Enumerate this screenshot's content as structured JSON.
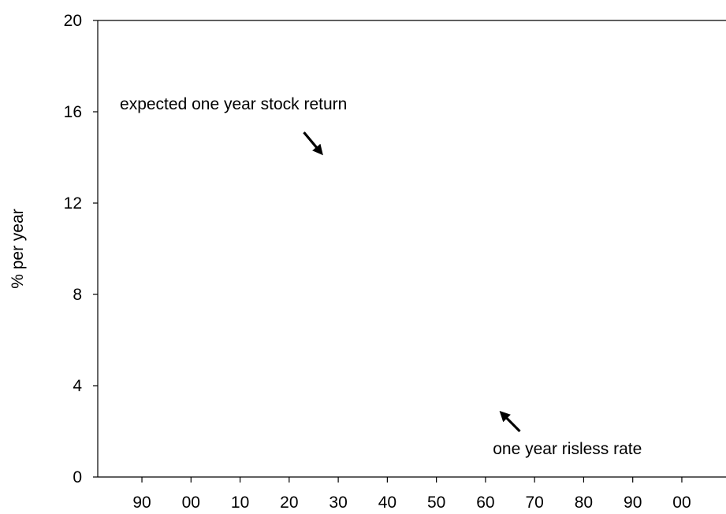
{
  "chart_data": {
    "type": "line",
    "title": "",
    "xlabel": "",
    "ylabel": "% per year",
    "ylim": [
      0,
      20
    ],
    "xlim": [
      1881,
      2009
    ],
    "x_ticks": [
      {
        "value": 1890,
        "label": "90"
      },
      {
        "value": 1900,
        "label": "00"
      },
      {
        "value": 1910,
        "label": "10"
      },
      {
        "value": 1920,
        "label": "20"
      },
      {
        "value": 1930,
        "label": "30"
      },
      {
        "value": 1940,
        "label": "40"
      },
      {
        "value": 1950,
        "label": "50"
      },
      {
        "value": 1960,
        "label": "60"
      },
      {
        "value": 1970,
        "label": "70"
      },
      {
        "value": 1980,
        "label": "80"
      },
      {
        "value": 1990,
        "label": "90"
      },
      {
        "value": 2000,
        "label": "00"
      }
    ],
    "y_ticks": [
      {
        "value": 0,
        "label": "0"
      },
      {
        "value": 4,
        "label": "4"
      },
      {
        "value": 8,
        "label": "8"
      },
      {
        "value": 12,
        "label": "12"
      },
      {
        "value": 16,
        "label": "16"
      },
      {
        "value": 20,
        "label": "20"
      }
    ],
    "grid": false,
    "legend": "none",
    "series": [],
    "annotations": [
      {
        "text": "expected one year stock return",
        "arrow_direction": "down-right",
        "text_x": 1885.5,
        "text_y": 16.1,
        "arrow_from": [
          1923,
          15.1
        ],
        "arrow_to": [
          1926.5,
          14.2
        ]
      },
      {
        "text": "one year risless rate",
        "arrow_direction": "up-left",
        "text_x": 1961.5,
        "text_y": 1.0,
        "arrow_from": [
          1967,
          2.0
        ],
        "arrow_to": [
          1963.3,
          2.8
        ]
      }
    ]
  }
}
